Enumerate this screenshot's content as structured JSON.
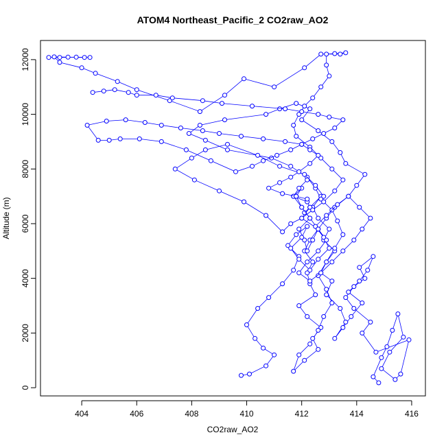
{
  "chart_data": {
    "type": "line",
    "title": "ATOM4 Northeast_Pacific_2 CO2raw_AO2",
    "xlabel": "CO2raw_AO2",
    "ylabel": "Altitude (m)",
    "xlim": [
      402.5,
      416.5
    ],
    "ylim": [
      -300,
      12700
    ],
    "xticks": [
      404,
      406,
      408,
      410,
      412,
      414,
      416
    ],
    "yticks": [
      0,
      2000,
      4000,
      6000,
      8000,
      10000,
      12000
    ],
    "grid": false,
    "legend": "none",
    "series_color": "#0000ff",
    "marker": "open-circle",
    "series": [
      {
        "x": [
          414.8,
          414.6,
          414.9,
          415.1,
          415.3,
          415.5,
          415.7,
          415.2,
          414.9,
          415.4,
          415.6,
          415.9,
          414.7,
          414.2,
          414.5,
          413.9,
          413.6,
          413.9,
          414.3,
          414.1,
          414.6,
          414.4,
          414.1,
          413.7,
          414.2,
          413.8,
          413.5,
          413.2,
          413.6,
          413.4,
          412.9,
          413.1,
          412.7,
          412.9,
          413.2,
          412.8,
          413.0,
          412.6,
          412.4,
          412.7,
          412.3,
          412.0,
          412.6,
          412.3,
          412.1,
          412.4,
          412.2,
          412.3,
          412.5,
          411.9,
          412.2,
          412.7,
          412.4,
          412.6,
          412.1,
          411.7,
          411.9,
          412.3,
          412.6,
          412.8,
          413.1,
          412.9,
          412.6,
          412.9,
          413.2,
          413.5,
          413.3,
          413.1,
          412.7,
          412.5,
          412.2,
          411.6,
          410.9,
          409.3,
          408.5,
          407.9,
          408.3,
          409.2,
          410.7,
          411.2,
          411.8,
          412.3,
          412.0,
          412.6,
          413.1,
          413.4,
          413.6,
          414.3,
          414.0,
          413.7,
          413.2,
          412.9,
          412.6,
          412.4,
          412.2,
          412.1,
          411.9,
          412.3,
          412.0,
          411.8,
          412.0,
          411.7,
          412.2,
          412.3,
          412.1
        ],
        "y": [
          180,
          400,
          1100,
          1500,
          2100,
          2700,
          1850,
          1300,
          700,
          300,
          500,
          1750,
          1300,
          2000,
          2400,
          2900,
          3300,
          3700,
          4000,
          4400,
          4800,
          4300,
          3900,
          3500,
          3100,
          2600,
          2200,
          1800,
          2400,
          2900,
          3400,
          3900,
          4200,
          4600,
          5000,
          5400,
          5800,
          6200,
          6600,
          7000,
          6600,
          6200,
          5800,
          5400,
          5000,
          4600,
          4200,
          3800,
          3400,
          3000,
          2600,
          2200,
          1800,
          1400,
          1000,
          600,
          1200,
          1600,
          2100,
          2600,
          3100,
          3600,
          4100,
          4600,
          5100,
          5600,
          6100,
          6500,
          6900,
          7300,
          7700,
          8100,
          8400,
          8700,
          9050,
          9300,
          9600,
          9800,
          10000,
          10200,
          10400,
          10200,
          9800,
          9400,
          9000,
          8600,
          8200,
          7800,
          7400,
          7000,
          6600,
          6200,
          5800,
          5400,
          5000,
          5400,
          5800,
          6200,
          6600,
          7000,
          7300,
          7000,
          6800,
          6600,
          6400
        ]
      },
      {
        "x": [
          409.8,
          410.1,
          410.7,
          411.0,
          410.6,
          410.3,
          410.0,
          410.4,
          410.8,
          411.3,
          411.7,
          411.9,
          411.5,
          411.8,
          412.2,
          412.0,
          411.6,
          411.9,
          412.3,
          412.6,
          413.0,
          412.8,
          412.5,
          412.9,
          413.3,
          413.7,
          414.1,
          414.5,
          414.2,
          413.9,
          413.5,
          413.1,
          412.7,
          412.3,
          411.9,
          412.2,
          412.6,
          412.9,
          412.6,
          412.3,
          412.0,
          411.7,
          411.9,
          412.2
        ],
        "y": [
          450,
          500,
          800,
          1200,
          1450,
          1800,
          2300,
          2900,
          3300,
          3800,
          4300,
          4800,
          5200,
          5600,
          5900,
          5500,
          5100,
          4700,
          4300,
          4700,
          5100,
          5500,
          5900,
          6300,
          6700,
          7000,
          6600,
          6200,
          5800,
          5400,
          5000,
          4600,
          4200,
          3900,
          4200,
          4600,
          5000,
          5400,
          5800,
          6200,
          6600,
          7000,
          7300,
          7600
        ]
      },
      {
        "x": [
          402.8,
          403.2,
          403.8,
          404.3,
          404.1,
          403.5,
          403.0,
          403.2,
          404.0,
          404.5,
          405.3,
          406.0,
          407.2,
          408.3,
          409.2,
          409.9,
          411.0,
          412.1,
          412.7,
          413.4,
          413.6,
          413.2,
          412.9,
          412.9,
          413.0,
          412.7,
          412.4,
          412.1,
          411.9,
          411.7,
          411.8,
          412.3,
          412.7,
          413.1,
          413.5,
          413.2,
          412.8,
          412.4,
          412.0,
          411.6,
          411.3,
          410.7,
          409.9,
          409.0,
          408.1,
          407.4,
          408.0,
          408.5,
          409.3,
          410.4,
          411.2,
          412.1,
          412.5,
          412.8
        ],
        "y": [
          12080,
          12080,
          12090,
          12080,
          12080,
          12090,
          12100,
          11900,
          11700,
          11500,
          11200,
          10900,
          10500,
          10100,
          10700,
          11300,
          11000,
          11700,
          12200,
          12200,
          12250,
          12220,
          12200,
          11800,
          11400,
          11000,
          10600,
          10300,
          10000,
          9600,
          9200,
          8800,
          8400,
          8000,
          7600,
          7200,
          6800,
          6500,
          6200,
          6000,
          5700,
          6300,
          6800,
          7200,
          7600,
          8000,
          8400,
          8700,
          8900,
          8500,
          8100,
          7800,
          7400,
          7000
        ]
      },
      {
        "x": [
          404.4,
          404.8,
          405.2,
          405.7,
          406.0,
          406.7,
          407.3,
          408.4,
          409.1,
          410.2,
          411.4,
          412.0,
          412.6,
          413.0,
          413.5,
          413.2,
          412.8,
          412.4,
          412.0,
          411.6,
          411.1,
          410.6,
          410.2,
          409.6,
          408.7,
          407.8,
          406.9,
          406.1,
          405.4,
          405.0,
          404.6,
          404.2,
          404.9,
          405.6,
          406.3,
          406.9,
          407.6,
          408.4,
          409.0,
          409.8,
          410.6,
          411.4,
          412.0,
          412.3,
          412.6,
          412.3,
          411.9,
          411.6,
          411.2,
          410.8,
          411.3,
          411.8,
          412.2
        ],
        "y": [
          10800,
          10850,
          10900,
          10800,
          10700,
          10700,
          10600,
          10500,
          10400,
          10300,
          10200,
          10100,
          10000,
          9900,
          9800,
          9500,
          9300,
          9100,
          8900,
          8700,
          8500,
          8300,
          8100,
          7900,
          8300,
          8700,
          9000,
          9100,
          9100,
          9050,
          9050,
          9600,
          9750,
          9800,
          9700,
          9600,
          9500,
          9400,
          9300,
          9200,
          9100,
          9000,
          8900,
          8700,
          8500,
          8200,
          7900,
          7700,
          7500,
          7300,
          7100,
          7000,
          6900
        ]
      }
    ]
  }
}
